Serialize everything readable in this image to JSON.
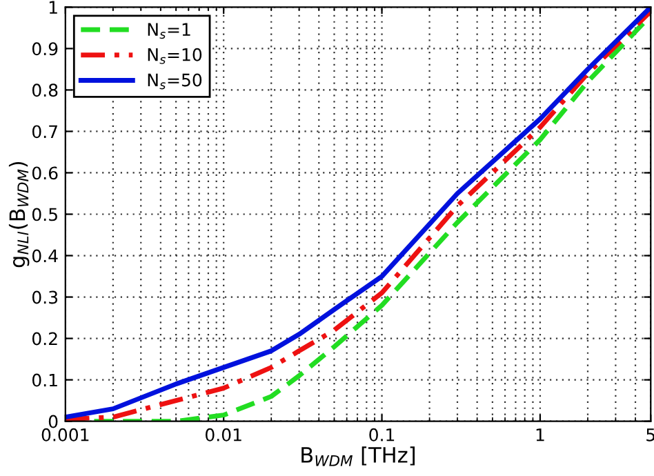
{
  "chart_data": {
    "type": "line",
    "xlabel": "B$_{WDM}$ [THz]",
    "ylabel": "g$_{NLI}$(B$_{WDM}$)",
    "x": [
      0.001,
      0.002,
      0.005,
      0.01,
      0.02,
      0.03,
      0.05,
      0.1,
      0.3,
      1,
      2,
      5
    ],
    "series": [
      {
        "name": "N$_{s}$=1",
        "color": "#22dd22",
        "line_style": "dashed",
        "values": [
          0,
          0,
          0,
          0.015,
          0.06,
          0.11,
          0.18,
          0.28,
          0.48,
          0.68,
          0.82,
          0.98
        ]
      },
      {
        "name": "N$_{s}$=10",
        "color": "#ee1111",
        "line_style": "dashdot",
        "values": [
          0.005,
          0.01,
          0.05,
          0.08,
          0.13,
          0.17,
          0.22,
          0.31,
          0.52,
          0.71,
          0.84,
          0.99
        ]
      },
      {
        "name": "N$_{s}$=50",
        "color": "#0011dd",
        "line_style": "solid",
        "values": [
          0.01,
          0.03,
          0.09,
          0.13,
          0.17,
          0.21,
          0.27,
          0.35,
          0.55,
          0.73,
          0.85,
          1.0
        ]
      }
    ],
    "log": "x",
    "xlim": [
      0.001,
      5
    ],
    "ylim": [
      0,
      1
    ],
    "xticks": [
      0.001,
      0.01,
      0.1,
      1,
      5
    ],
    "yticks": [
      0,
      0.1,
      0.2,
      0.3,
      0.4,
      0.5,
      0.6,
      0.7,
      0.8,
      0.9,
      1
    ],
    "grid": true,
    "legend": "top left"
  }
}
